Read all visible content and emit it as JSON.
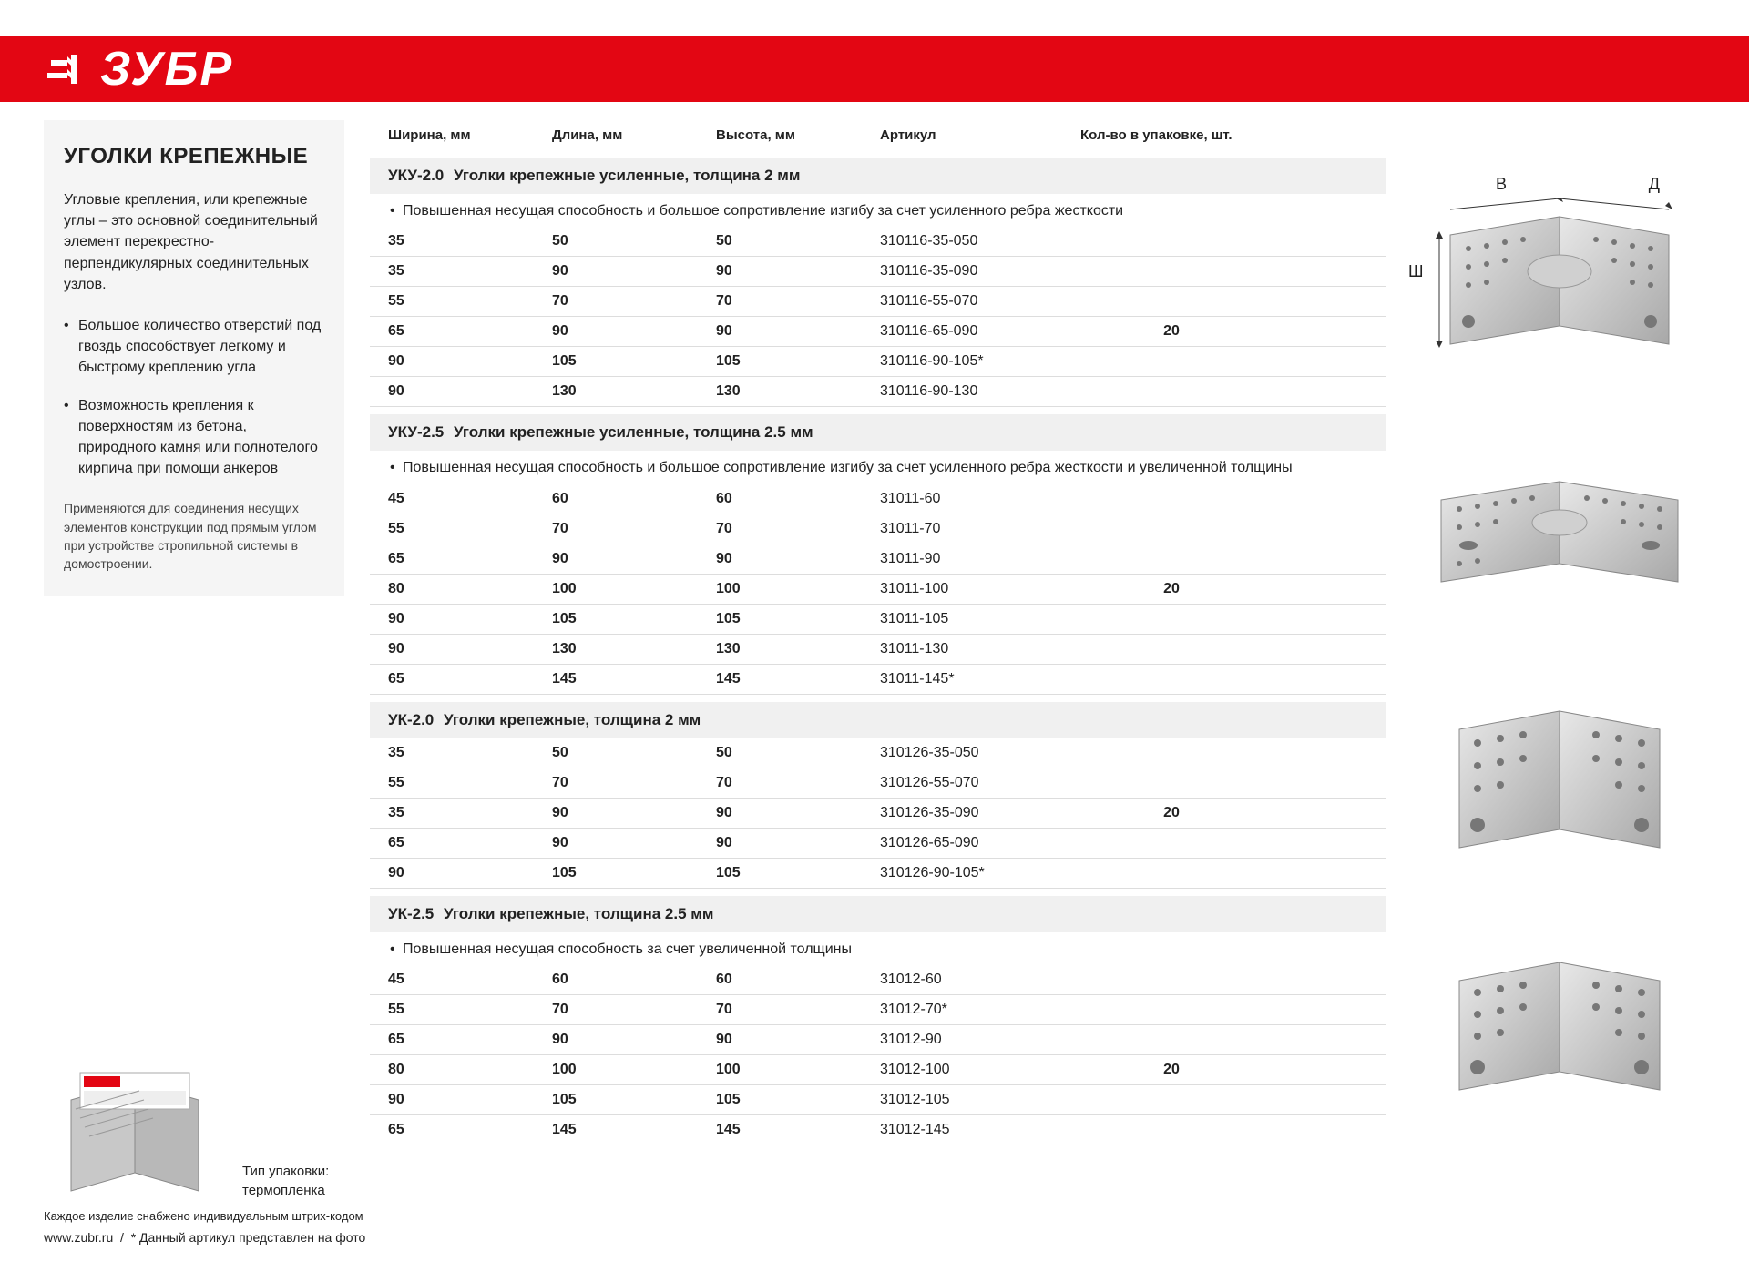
{
  "brand": "ЗУБР",
  "colors": {
    "accent": "#e30613",
    "bg_gray": "#f5f5f5"
  },
  "sidebar": {
    "title": "УГОЛКИ КРЕПЕЖНЫЕ",
    "intro": "Угловые крепления, или крепежные углы – это основной соединительный элемент перекрестно-перпендикулярных соединительных узлов.",
    "bullets": [
      "Большое количество отверстий под гвоздь способствует легкому и быстрому креплению угла",
      "Возможность крепления к поверхностям из бетона, природного камня или полнотелого кирпича при помощи анкеров"
    ],
    "note": "Применяются для соединения несущих элементов конструкции под прямым углом при устройстве стропильной системы в домостроении."
  },
  "columns": [
    "Ширина, мм",
    "Длина, мм",
    "Высота, мм",
    "Артикул",
    "Кол-во в упаковке, шт."
  ],
  "sections": [
    {
      "title_code": "УКУ-2.0",
      "title_text": "Уголки крепежные усиленные, толщина 2 мм",
      "note": "Повышенная несущая способность и большое сопротивление изгибу за счет усиленного ребра жесткости",
      "qty": "20",
      "rows": [
        [
          "35",
          "50",
          "50",
          "310116-35-050"
        ],
        [
          "35",
          "90",
          "90",
          "310116-35-090"
        ],
        [
          "55",
          "70",
          "70",
          "310116-55-070"
        ],
        [
          "65",
          "90",
          "90",
          "310116-65-090"
        ],
        [
          "90",
          "105",
          "105",
          "310116-90-105*"
        ],
        [
          "90",
          "130",
          "130",
          "310116-90-130"
        ]
      ]
    },
    {
      "title_code": "УКУ-2.5",
      "title_text": "Уголки крепежные усиленные, толщина 2.5 мм",
      "note": "Повышенная несущая способность и большое сопротивление изгибу за счет усиленного ребра жесткости и увеличенной толщины",
      "qty": "20",
      "rows": [
        [
          "45",
          "60",
          "60",
          "31011-60"
        ],
        [
          "55",
          "70",
          "70",
          "31011-70"
        ],
        [
          "65",
          "90",
          "90",
          "31011-90"
        ],
        [
          "80",
          "100",
          "100",
          "31011-100"
        ],
        [
          "90",
          "105",
          "105",
          "31011-105"
        ],
        [
          "90",
          "130",
          "130",
          "31011-130"
        ],
        [
          "65",
          "145",
          "145",
          "31011-145*"
        ]
      ]
    },
    {
      "title_code": "УК-2.0",
      "title_text": "Уголки крепежные, толщина 2 мм",
      "note": "",
      "qty": "20",
      "rows": [
        [
          "35",
          "50",
          "50",
          "310126-35-050"
        ],
        [
          "55",
          "70",
          "70",
          "310126-55-070"
        ],
        [
          "35",
          "90",
          "90",
          "310126-35-090"
        ],
        [
          "65",
          "90",
          "90",
          "310126-65-090"
        ],
        [
          "90",
          "105",
          "105",
          "310126-90-105*"
        ]
      ]
    },
    {
      "title_code": "УК-2.5",
      "title_text": "Уголки крепежные, толщина 2.5 мм",
      "note": "Повышенная несущая способность за счет увеличенной толщины",
      "qty": "20",
      "rows": [
        [
          "45",
          "60",
          "60",
          "31012-60"
        ],
        [
          "55",
          "70",
          "70",
          "31012-70*"
        ],
        [
          "65",
          "90",
          "90",
          "31012-90"
        ],
        [
          "80",
          "100",
          "100",
          "31012-100"
        ],
        [
          "90",
          "105",
          "105",
          "31012-105"
        ],
        [
          "65",
          "145",
          "145",
          "31012-145"
        ]
      ]
    }
  ],
  "dim_labels": {
    "w": "В",
    "d": "Д",
    "h": "Ш"
  },
  "packaging": {
    "label": "Тип упаковки:",
    "value": "термопленка",
    "caption": "Каждое изделие снабжено индивидуальным штрих-кодом",
    "box_text": "65 x 90 x 90мм",
    "box_qty": "20шт"
  },
  "footer": {
    "url": "www.zubr.ru",
    "asterisk": "* Данный артикул представлен на фото"
  }
}
